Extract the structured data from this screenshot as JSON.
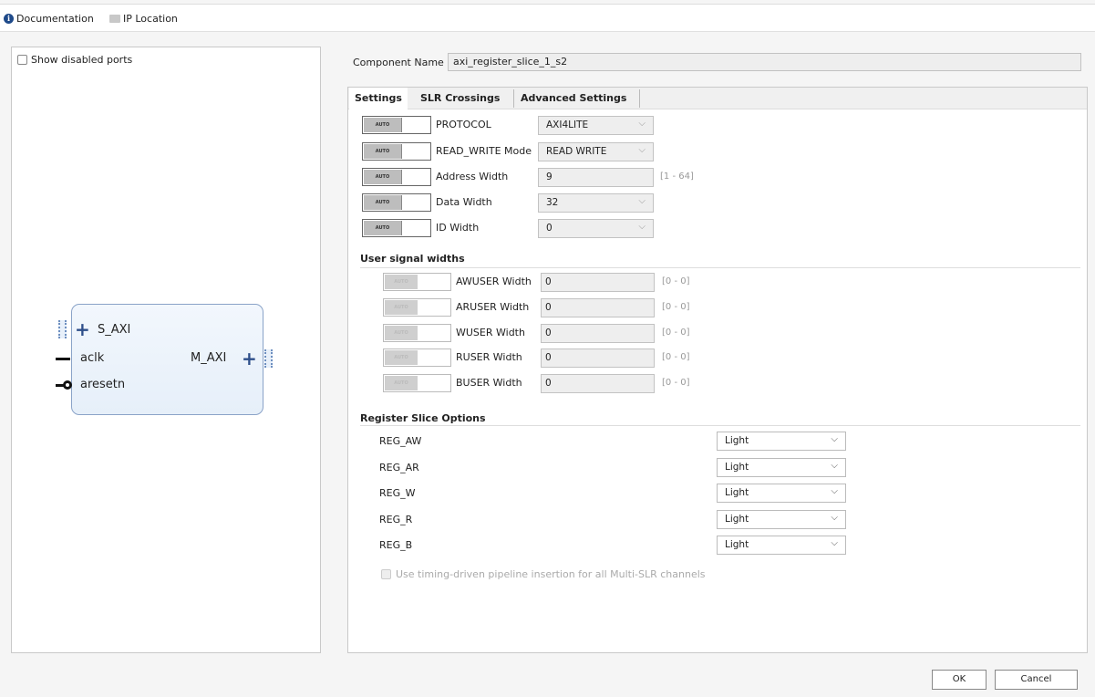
{
  "toolbar": {
    "documentation": "Documentation",
    "ip_location": "IP Location"
  },
  "left": {
    "show_disabled_ports": "Show disabled ports",
    "symbol": {
      "s_axi": "S_AXI",
      "aclk": "aclk",
      "aresetn": "aresetn",
      "m_axi": "M_AXI"
    }
  },
  "component": {
    "label": "Component Name",
    "value": "axi_register_slice_1_s2"
  },
  "tabs": [
    {
      "label": "Settings"
    },
    {
      "label": "SLR Crossings"
    },
    {
      "label": "Advanced Settings"
    }
  ],
  "auto_label": "AUTO",
  "settings": [
    {
      "label": "PROTOCOL",
      "value": "AXI4LITE",
      "type": "select"
    },
    {
      "label": "READ_WRITE Mode",
      "value": "READ WRITE",
      "type": "select"
    },
    {
      "label": "Address Width",
      "value": "9",
      "type": "input",
      "range": "[1 - 64]"
    },
    {
      "label": "Data Width",
      "value": "32",
      "type": "select"
    },
    {
      "label": "ID Width",
      "value": "0",
      "type": "select"
    }
  ],
  "user_signal": {
    "heading": "User signal widths",
    "rows": [
      {
        "label": "AWUSER Width",
        "value": "0",
        "range": "[0 - 0]"
      },
      {
        "label": "ARUSER Width",
        "value": "0",
        "range": "[0 - 0]"
      },
      {
        "label": "WUSER Width",
        "value": "0",
        "range": "[0 - 0]"
      },
      {
        "label": "RUSER Width",
        "value": "0",
        "range": "[0 - 0]"
      },
      {
        "label": "BUSER Width",
        "value": "0",
        "range": "[0 - 0]"
      }
    ]
  },
  "register_slice": {
    "heading": "Register Slice Options",
    "rows": [
      {
        "label": "REG_AW",
        "value": "Light"
      },
      {
        "label": "REG_AR",
        "value": "Light"
      },
      {
        "label": "REG_W",
        "value": "Light"
      },
      {
        "label": "REG_R",
        "value": "Light"
      },
      {
        "label": "REG_B",
        "value": "Light"
      }
    ],
    "timing_checkbox": "Use timing-driven pipeline insertion for all Multi-SLR channels"
  },
  "buttons": {
    "ok": "OK",
    "cancel": "Cancel"
  }
}
